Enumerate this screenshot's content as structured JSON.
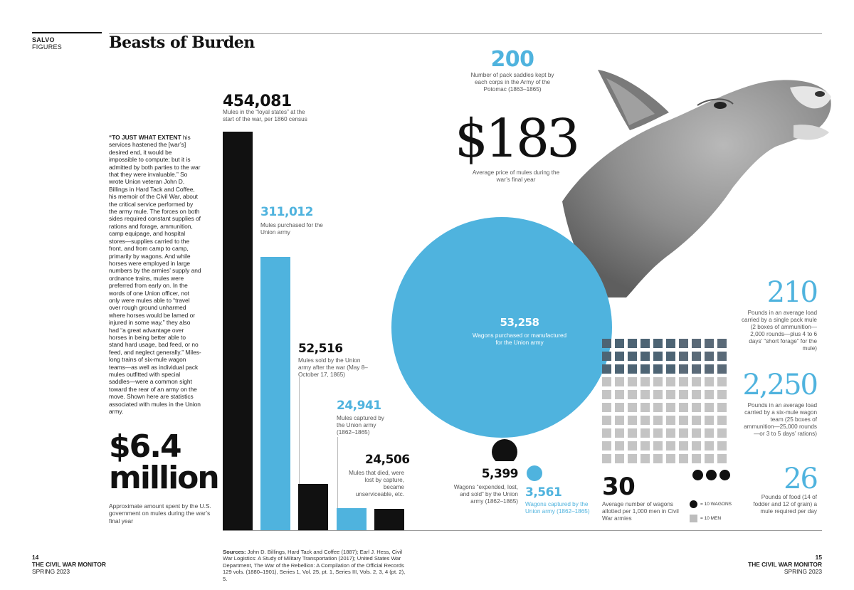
{
  "header": {
    "section": "SALVO",
    "subsection": "FIGURES",
    "title": "Beasts of Burden"
  },
  "intro": {
    "lead": "“TO JUST WHAT EXTENT",
    "body": " his services hastened the [war’s] desired end, it would be impossible to compute; but it is admitted by both parties to the war that they were invaluable.” So wrote Union veteran John D. Billings in Hard Tack and Coffee, his memoir of the Civil War, about the critical service performed by the army mule. The forces on both sides required constant supplies of rations and forage, ammunition, camp equipage, and hospital stores—supplies carried to the front, and from camp to camp, primarily by wagons. And while horses were employed in large numbers by the armies’ supply and ordnance trains, mules were preferred from early on. In the words of one Union officer, not only were mules able to “travel over rough ground unharmed where horses would be lamed or injured in some way,” they also had “a great advantage over horses in being better able to stand hard usage, bad feed, or no feed, and neglect generally.” Miles-long trains of six-mule wagon teams—as well as individual pack mules outfitted with special saddles—were a common sight toward the rear of an army on the move. Shown here are statistics associated with mules in the Union army."
  },
  "spending": {
    "amount_line1": "$6.4",
    "amount_line2": "million",
    "caption": "Approximate amount spent by the U.S. government on mules during the war’s final year"
  },
  "chart_data": {
    "type": "bar",
    "title": "",
    "categories": [
      "Mules in the “loyal states” at the start of the war, per 1860 census",
      "Mules purchased for the Union army",
      "Mules sold by the Union army after the war (May 8–October 17, 1865)",
      "Mules captured by the Union army (1862–1865)",
      "Mules that died, were lost by capture, became unserviceable, etc."
    ],
    "values": [
      454081,
      311012,
      52516,
      24941,
      24506
    ],
    "labels": [
      "454,081",
      "311,012",
      "52,516",
      "24,941",
      "24,506"
    ],
    "colors": [
      "#111111",
      "#4fb3de",
      "#111111",
      "#4fb3de",
      "#111111"
    ]
  },
  "saddles": {
    "value": "200",
    "caption": "Number of pack saddles kept by each corps in the Army of the Potomac (1863–1865)"
  },
  "price": {
    "value": "$183",
    "caption": "Average price of mules during the war’s final year"
  },
  "wagons": {
    "purchased_value": "53,258",
    "purchased_caption": "Wagons purchased or manufactured for the Union army",
    "lost_value": "5,399",
    "lost_caption": "Wagons “expended, lost, and sold” by the Union army (1862–1865)",
    "captured_value": "3,561",
    "captured_caption": "Wagons captured by the Union army (1862–1865)"
  },
  "per_men": {
    "value": "30",
    "caption": "Average number of wagons allotted per 1,000 men in Civil War armies",
    "legend_wagons": "= 10 WAGONS",
    "legend_men": "= 10 MEN",
    "wagon_units": 3,
    "men_units": 100,
    "highlighted_units": 30
  },
  "loads": {
    "pack_value": "210",
    "pack_caption": "Pounds in an average load carried by a single pack mule (2 boxes of ammunition—2,000 rounds—plus 4 to 6 days’ “short forage” for the mule)",
    "team_value": "2,250",
    "team_caption": "Pounds in an average load carried by a six-mule wagon team (25 boxes of ammunition—25,000 rounds—or 3 to 5 days’ rations)",
    "food_value": "26",
    "food_caption": "Pounds of food (14 of fodder and 12 of grain) a mule required per day"
  },
  "sources": {
    "label": "Sources:",
    "text": " John D. Billings, Hard Tack and Coffee (1887); Earl J. Hess, Civil War Logistics: A Study of Military Transportation (2017); United States War Department, The War of the Rebellion: A Compilation of the Official Records 129 vols. (1880–1901), Series 1, Vol. 25, pt. 1, Series III, Vols. 2, 3, 4 (pt. 2), 5."
  },
  "footer": {
    "left_page": "14",
    "left_mag": "THE CIVIL WAR MONITOR",
    "left_issue": "SPRING 2023",
    "right_page": "15",
    "right_mag": "THE CIVIL WAR MONITOR",
    "right_issue": "SPRING 2023"
  },
  "colors": {
    "blue": "#4fb3de",
    "black": "#111111",
    "grey": "#bdbdbd"
  }
}
